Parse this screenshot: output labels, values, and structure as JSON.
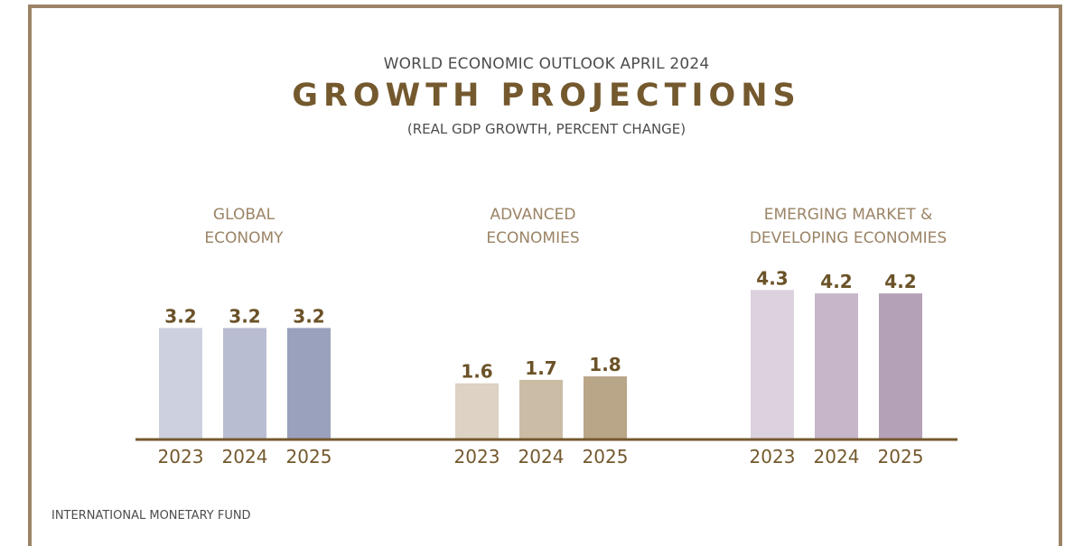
{
  "supertitle": "WORLD ECONOMIC OUTLOOK APRIL 2024",
  "footer": "INTERNATIONAL MONETARY FUND",
  "chart_data": {
    "type": "bar",
    "title": "GROWTH PROJECTIONS",
    "subtitle": "(REAL GDP GROWTH, PERCENT CHANGE)",
    "categories": [
      "2023",
      "2024",
      "2025"
    ],
    "groups": [
      {
        "lines": [
          "GLOBAL",
          "ECONOMY"
        ],
        "values": [
          3.2,
          3.2,
          3.2
        ],
        "labels": [
          "3.2",
          "3.2",
          "3.2"
        ],
        "colors": [
          "#cdd0df",
          "#b9bdd2",
          "#9aa1bd"
        ]
      },
      {
        "lines": [
          "ADVANCED",
          "ECONOMIES"
        ],
        "values": [
          1.6,
          1.7,
          1.8
        ],
        "labels": [
          "1.6",
          "1.7",
          "1.8"
        ],
        "colors": [
          "#ddd2c3",
          "#cbbca6",
          "#b9a587"
        ]
      },
      {
        "lines": [
          "EMERGING MARKET &",
          "DEVELOPING ECONOMIES"
        ],
        "values": [
          4.3,
          4.2,
          4.2
        ],
        "labels": [
          "4.3",
          "4.2",
          "4.2"
        ],
        "colors": [
          "#dcd1de",
          "#c7b5c9",
          "#b4a0b7"
        ]
      }
    ],
    "colors": {
      "baseline": "#74592e",
      "value_label": "#6b5228",
      "category_label": "#9b8466",
      "tick_label": "#74592e"
    }
  }
}
